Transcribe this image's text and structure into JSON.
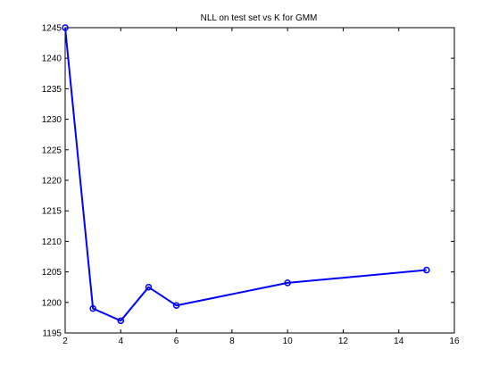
{
  "chart_data": {
    "type": "line",
    "title": "NLL on test set vs K for GMM",
    "xlabel": "",
    "ylabel": "",
    "xlim": [
      2,
      16
    ],
    "ylim": [
      1195,
      1245
    ],
    "xticks": [
      2,
      4,
      6,
      8,
      10,
      12,
      14,
      16
    ],
    "yticks": [
      1195,
      1200,
      1205,
      1210,
      1215,
      1220,
      1225,
      1230,
      1235,
      1240,
      1245
    ],
    "grid": false,
    "legend": "none",
    "series": [
      {
        "color": "#0000ff",
        "marker": "circle",
        "x": [
          2,
          3,
          4,
          5,
          6,
          10,
          15
        ],
        "y": [
          1245,
          1199,
          1197,
          1202.5,
          1199.5,
          1203.2,
          1205.3
        ]
      }
    ]
  }
}
